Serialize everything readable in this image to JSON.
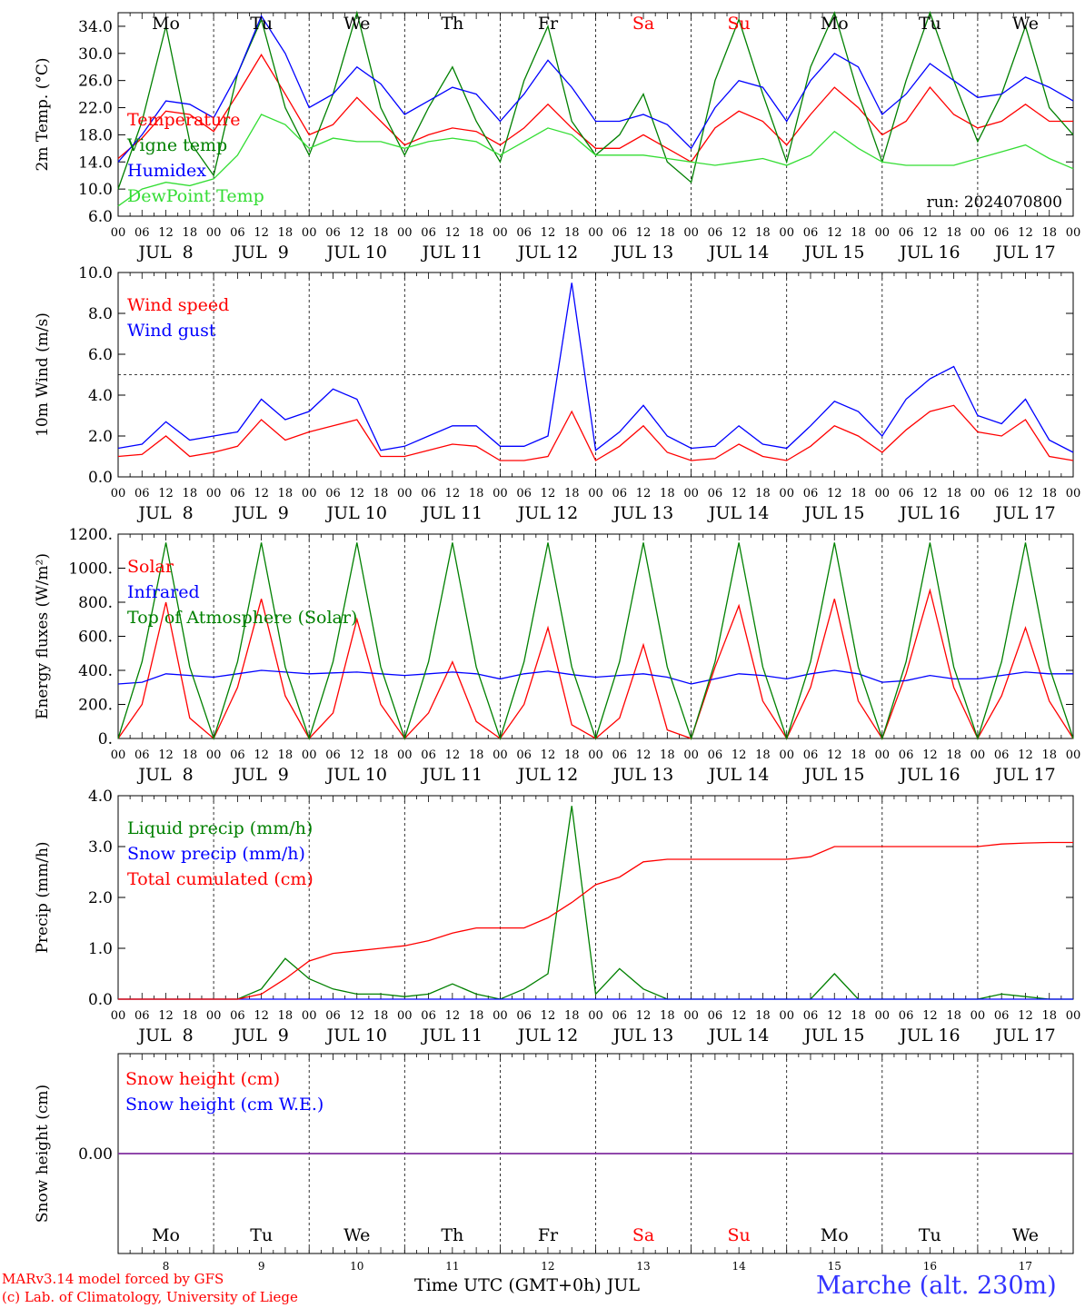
{
  "chart_data": [
    {
      "type": "line",
      "ylabel": "2m Temp. (°C)",
      "ylim": [
        6,
        36
      ],
      "yticks": [
        "6.0",
        "10.0",
        "14.0",
        "18.0",
        "22.0",
        "26.0",
        "30.0",
        "34.0"
      ],
      "run_label": "run: 2024070800",
      "day_labels": [
        "Mo",
        "Tu",
        "We",
        "Th",
        "Fr",
        "Sa",
        "Su",
        "Mo",
        "Tu",
        "We"
      ],
      "hour_labels": [
        "00",
        "06",
        "12",
        "18"
      ],
      "date_labels": [
        "JUL  8",
        "JUL  9",
        "JUL 10",
        "JUL 11",
        "JUL 12",
        "JUL 13",
        "JUL 14",
        "JUL 15",
        "JUL 16",
        "JUL 17"
      ],
      "x": [
        "2024-07-08T00",
        "2024-07-08T06",
        "2024-07-08T12",
        "2024-07-08T18",
        "2024-07-09T00",
        "2024-07-09T06",
        "2024-07-09T12",
        "2024-07-09T18",
        "2024-07-10T00",
        "2024-07-10T06",
        "2024-07-10T12",
        "2024-07-10T18",
        "2024-07-11T00",
        "2024-07-11T06",
        "2024-07-11T12",
        "2024-07-11T18",
        "2024-07-12T00",
        "2024-07-12T06",
        "2024-07-12T12",
        "2024-07-12T18",
        "2024-07-13T00",
        "2024-07-13T06",
        "2024-07-13T12",
        "2024-07-13T18",
        "2024-07-14T00",
        "2024-07-14T06",
        "2024-07-14T12",
        "2024-07-14T18",
        "2024-07-15T00",
        "2024-07-15T06",
        "2024-07-15T12",
        "2024-07-15T18",
        "2024-07-16T00",
        "2024-07-16T06",
        "2024-07-16T12",
        "2024-07-16T18",
        "2024-07-17T00",
        "2024-07-17T06",
        "2024-07-17T12",
        "2024-07-17T18",
        "2024-07-18T00"
      ],
      "series": [
        {
          "name": "Temperature",
          "color": "#ff0000",
          "values": [
            14.5,
            17.5,
            21.5,
            21.0,
            18.5,
            24.0,
            29.8,
            24.0,
            18.0,
            19.5,
            23.5,
            20.0,
            16.5,
            18.0,
            19.0,
            18.5,
            16.5,
            19.0,
            22.5,
            19.0,
            16.0,
            16.0,
            18.0,
            16.0,
            14.0,
            19.0,
            21.5,
            20.0,
            16.5,
            21.0,
            25.0,
            22.0,
            18.0,
            20.0,
            25.0,
            21.0,
            19.0,
            20.0,
            22.5,
            20.0,
            20.0
          ]
        },
        {
          "name": "Vigne temp",
          "color": "#008000",
          "values": [
            10.0,
            20.0,
            34.0,
            17.0,
            12.0,
            27.0,
            35.0,
            22.0,
            15.0,
            24.0,
            36.0,
            22.0,
            15.0,
            22.0,
            28.0,
            20.0,
            14.0,
            26.0,
            34.0,
            20.0,
            15.0,
            18.0,
            24.0,
            14.0,
            11.0,
            26.0,
            35.0,
            24.0,
            14.0,
            28.0,
            36.0,
            24.0,
            14.0,
            26.0,
            36.0,
            26.0,
            17.0,
            24.0,
            34.0,
            22.0,
            18.0
          ]
        },
        {
          "name": "Humidex",
          "color": "#0000ff",
          "values": [
            14.0,
            18.0,
            23.0,
            22.5,
            20.5,
            27.0,
            35.5,
            30.0,
            22.0,
            24.0,
            28.0,
            25.5,
            21.0,
            23.0,
            25.0,
            24.0,
            20.0,
            24.0,
            29.0,
            25.0,
            20.0,
            20.0,
            21.0,
            19.5,
            16.0,
            22.0,
            26.0,
            25.0,
            20.0,
            26.0,
            30.0,
            28.0,
            21.0,
            24.0,
            28.5,
            26.0,
            23.5,
            24.0,
            26.5,
            25.0,
            23.0
          ]
        },
        {
          "name": "DewPoint Temp",
          "color": "#33dd33",
          "values": [
            7.5,
            10.0,
            11.0,
            10.5,
            11.5,
            15.0,
            21.0,
            19.5,
            16.0,
            17.5,
            17.0,
            17.0,
            16.0,
            17.0,
            17.5,
            17.0,
            15.0,
            17.0,
            19.0,
            18.0,
            15.0,
            15.0,
            15.0,
            14.5,
            14.0,
            13.5,
            14.0,
            14.5,
            13.5,
            15.0,
            18.5,
            16.0,
            14.0,
            13.5,
            13.5,
            13.5,
            14.5,
            15.5,
            16.5,
            14.5,
            13.0
          ]
        }
      ]
    },
    {
      "type": "line",
      "ylabel": "10m Wind (m/s)",
      "ylim": [
        0,
        10
      ],
      "yticks": [
        "0.0",
        "2.0",
        "4.0",
        "6.0",
        "8.0",
        "10.0"
      ],
      "reference_line": 5.0,
      "date_labels": [
        "JUL  8",
        "JUL  9",
        "JUL 10",
        "JUL 11",
        "JUL 12",
        "JUL 13",
        "JUL 14",
        "JUL 15",
        "JUL 16",
        "JUL 17"
      ],
      "hour_labels": [
        "00",
        "06",
        "12",
        "18"
      ],
      "series": [
        {
          "name": "Wind speed",
          "color": "#ff0000",
          "values": [
            1.0,
            1.1,
            2.0,
            1.0,
            1.2,
            1.5,
            2.8,
            1.8,
            2.2,
            2.5,
            2.8,
            1.0,
            1.0,
            1.3,
            1.6,
            1.5,
            0.8,
            0.8,
            1.0,
            3.2,
            0.8,
            1.5,
            2.5,
            1.2,
            0.8,
            0.9,
            1.6,
            1.0,
            0.8,
            1.5,
            2.5,
            2.0,
            1.2,
            2.3,
            3.2,
            3.5,
            2.2,
            2.0,
            2.8,
            1.0,
            0.8
          ]
        },
        {
          "name": "Wind gust",
          "color": "#0000ff",
          "values": [
            1.4,
            1.6,
            2.7,
            1.8,
            2.0,
            2.2,
            3.8,
            2.8,
            3.2,
            4.3,
            3.8,
            1.3,
            1.5,
            2.0,
            2.5,
            2.5,
            1.5,
            1.5,
            2.0,
            9.5,
            1.3,
            2.2,
            3.5,
            2.0,
            1.4,
            1.5,
            2.5,
            1.6,
            1.4,
            2.5,
            3.7,
            3.2,
            2.0,
            3.8,
            4.8,
            5.4,
            3.0,
            2.6,
            3.8,
            1.8,
            1.2
          ]
        }
      ]
    },
    {
      "type": "line",
      "ylabel": "Energy fluxes (W/m²)",
      "ylim": [
        0,
        1200
      ],
      "yticks": [
        "0.",
        "200.",
        "400.",
        "600.",
        "800.",
        "1000.",
        "1200."
      ],
      "date_labels": [
        "JUL  8",
        "JUL  9",
        "JUL 10",
        "JUL 11",
        "JUL 12",
        "JUL 13",
        "JUL 14",
        "JUL 15",
        "JUL 16",
        "JUL 17"
      ],
      "hour_labels": [
        "00",
        "06",
        "12",
        "18"
      ],
      "series": [
        {
          "name": "Solar",
          "color": "#ff0000",
          "values": [
            0,
            200,
            800,
            120,
            0,
            300,
            820,
            250,
            0,
            150,
            700,
            200,
            0,
            150,
            450,
            100,
            0,
            200,
            650,
            80,
            0,
            120,
            550,
            50,
            0,
            420,
            780,
            220,
            0,
            300,
            820,
            220,
            0,
            380,
            870,
            300,
            0,
            250,
            650,
            220,
            0
          ]
        },
        {
          "name": "Infrared",
          "color": "#0000ff",
          "values": [
            320,
            330,
            380,
            370,
            360,
            380,
            400,
            390,
            380,
            385,
            390,
            380,
            370,
            380,
            390,
            380,
            350,
            380,
            395,
            375,
            360,
            370,
            380,
            360,
            320,
            350,
            380,
            370,
            350,
            380,
            400,
            380,
            330,
            340,
            370,
            350,
            350,
            370,
            390,
            380,
            380
          ]
        },
        {
          "name": "Top of Atmosphere (Solar)",
          "color": "#008000",
          "values": [
            0,
            450,
            1150,
            420,
            0,
            450,
            1150,
            420,
            0,
            450,
            1150,
            420,
            0,
            450,
            1150,
            420,
            0,
            450,
            1150,
            420,
            0,
            450,
            1150,
            420,
            0,
            450,
            1150,
            420,
            0,
            450,
            1150,
            420,
            0,
            450,
            1150,
            420,
            0,
            450,
            1150,
            420,
            0
          ]
        }
      ]
    },
    {
      "type": "line",
      "ylabel": "Precip (mm/h)",
      "ylim": [
        0,
        4
      ],
      "yticks": [
        "0.0",
        "1.0",
        "2.0",
        "3.0",
        "4.0"
      ],
      "date_labels": [
        "JUL  8",
        "JUL  9",
        "JUL 10",
        "JUL 11",
        "JUL 12",
        "JUL 13",
        "JUL 14",
        "JUL 15",
        "JUL 16",
        "JUL 17"
      ],
      "hour_labels": [
        "00",
        "06",
        "12",
        "18"
      ],
      "series": [
        {
          "name": "Liquid precip (mm/h)",
          "color": "#008000",
          "values": [
            0,
            0,
            0,
            0,
            0,
            0,
            0.2,
            0.8,
            0.4,
            0.2,
            0.1,
            0.1,
            0.05,
            0.1,
            0.3,
            0.1,
            0,
            0.2,
            0.5,
            3.8,
            0.1,
            0.6,
            0.2,
            0,
            0,
            0,
            0,
            0,
            0,
            0,
            0.5,
            0,
            0,
            0,
            0,
            0,
            0,
            0.1,
            0.05,
            0,
            0
          ]
        },
        {
          "name": "Snow precip (mm/h)",
          "color": "#0000ff",
          "values": [
            0,
            0,
            0,
            0,
            0,
            0,
            0,
            0,
            0,
            0,
            0,
            0,
            0,
            0,
            0,
            0,
            0,
            0,
            0,
            0,
            0,
            0,
            0,
            0,
            0,
            0,
            0,
            0,
            0,
            0,
            0,
            0,
            0,
            0,
            0,
            0,
            0,
            0,
            0,
            0,
            0
          ]
        },
        {
          "name": "Total cumulated (cm)",
          "color": "#ff0000",
          "values": [
            0,
            0,
            0,
            0,
            0,
            0,
            0.1,
            0.4,
            0.75,
            0.9,
            0.95,
            1.0,
            1.05,
            1.15,
            1.3,
            1.4,
            1.4,
            1.4,
            1.6,
            1.9,
            2.25,
            2.4,
            2.7,
            2.75,
            2.75,
            2.75,
            2.75,
            2.75,
            2.75,
            2.8,
            3.0,
            3.0,
            3.0,
            3.0,
            3.0,
            3.0,
            3.0,
            3.05,
            3.07,
            3.08,
            3.08
          ]
        }
      ]
    },
    {
      "type": "line",
      "ylabel": "Snow height (cm)",
      "ylim": [
        -1,
        1
      ],
      "yticks": [
        "0.00"
      ],
      "day_labels": [
        "Mo",
        "Tu",
        "We",
        "Th",
        "Fr",
        "Sa",
        "Su",
        "Mo",
        "Tu",
        "We"
      ],
      "day_numbers": [
        "8",
        "9",
        "10",
        "11",
        "12",
        "13",
        "14",
        "15",
        "16",
        "17"
      ],
      "series": [
        {
          "name": "Snow height (cm)",
          "color": "#ff0000",
          "values": [
            0,
            0
          ]
        },
        {
          "name": "Snow height (cm W.E.)",
          "color": "#0000ff",
          "values": [
            0,
            0
          ]
        }
      ]
    }
  ],
  "weekend_color": "#ff0000",
  "footer": {
    "model": "MARv3.14 model forced by GFS",
    "copyright": "(c) Lab. of Climatology, University of Liege",
    "xlabel": "Time UTC (GMT+0h) JUL",
    "station": "Marche (alt. 230m)"
  }
}
